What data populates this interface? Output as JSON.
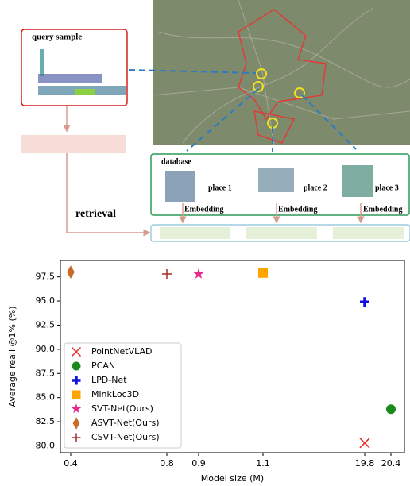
{
  "diagram": {
    "query_label": "query sample",
    "database_label": "database",
    "places": [
      "place 1",
      "place 2",
      "place 3"
    ],
    "embedding_labels": [
      "Embedding",
      "Embedding",
      "Embedding"
    ],
    "retrieval_label": "retrieval"
  },
  "chart_data": {
    "type": "scatter",
    "xlabel": "Model size (M)",
    "ylabel": "Average reall @1% (%)",
    "xticks": [
      0.4,
      0.8,
      0.9,
      1.1,
      19.8,
      20.4
    ],
    "ylim": [
      79.3,
      99.2
    ],
    "yticks": [
      {
        "value": 80,
        "label": "80.0"
      },
      {
        "value": 82.5,
        "label": "82.5"
      },
      {
        "value": 85,
        "label": "85.0"
      },
      {
        "value": 87.5,
        "label": "87.5"
      },
      {
        "value": 90,
        "label": "90.0"
      },
      {
        "value": 92.5,
        "label": "92.5"
      },
      {
        "value": 95,
        "label": "95.0"
      },
      {
        "value": 97.5,
        "label": "97.5"
      }
    ],
    "legend": "lower left",
    "series": [
      {
        "name": "PointNetVLAD",
        "color": "#e8281e",
        "marker": "x",
        "x": [
          19.8
        ],
        "values": [
          80.3
        ]
      },
      {
        "name": "PCAN",
        "color": "#1a8a1a",
        "marker": "circle",
        "x": [
          20.4
        ],
        "values": [
          83.8
        ]
      },
      {
        "name": "LPD-Net",
        "color": "#1010e0",
        "marker": "plus-bold",
        "x": [
          19.8
        ],
        "values": [
          94.9
        ]
      },
      {
        "name": "MinkLoc3D",
        "color": "#ffa500",
        "marker": "square",
        "x": [
          1.1
        ],
        "values": [
          97.9
        ]
      },
      {
        "name": "SVT-Net(Ours)",
        "color": "#e8288a",
        "marker": "star",
        "x": [
          0.9
        ],
        "values": [
          97.8
        ]
      },
      {
        "name": "ASVT-Net(Ours)",
        "color": "#c86a28",
        "marker": "diamond",
        "x": [
          0.4
        ],
        "values": [
          98.0
        ]
      },
      {
        "name": "CSVT-Net(Ours)",
        "color": "#a82828",
        "marker": "plus",
        "x": [
          0.8
        ],
        "values": [
          97.8
        ]
      }
    ]
  }
}
